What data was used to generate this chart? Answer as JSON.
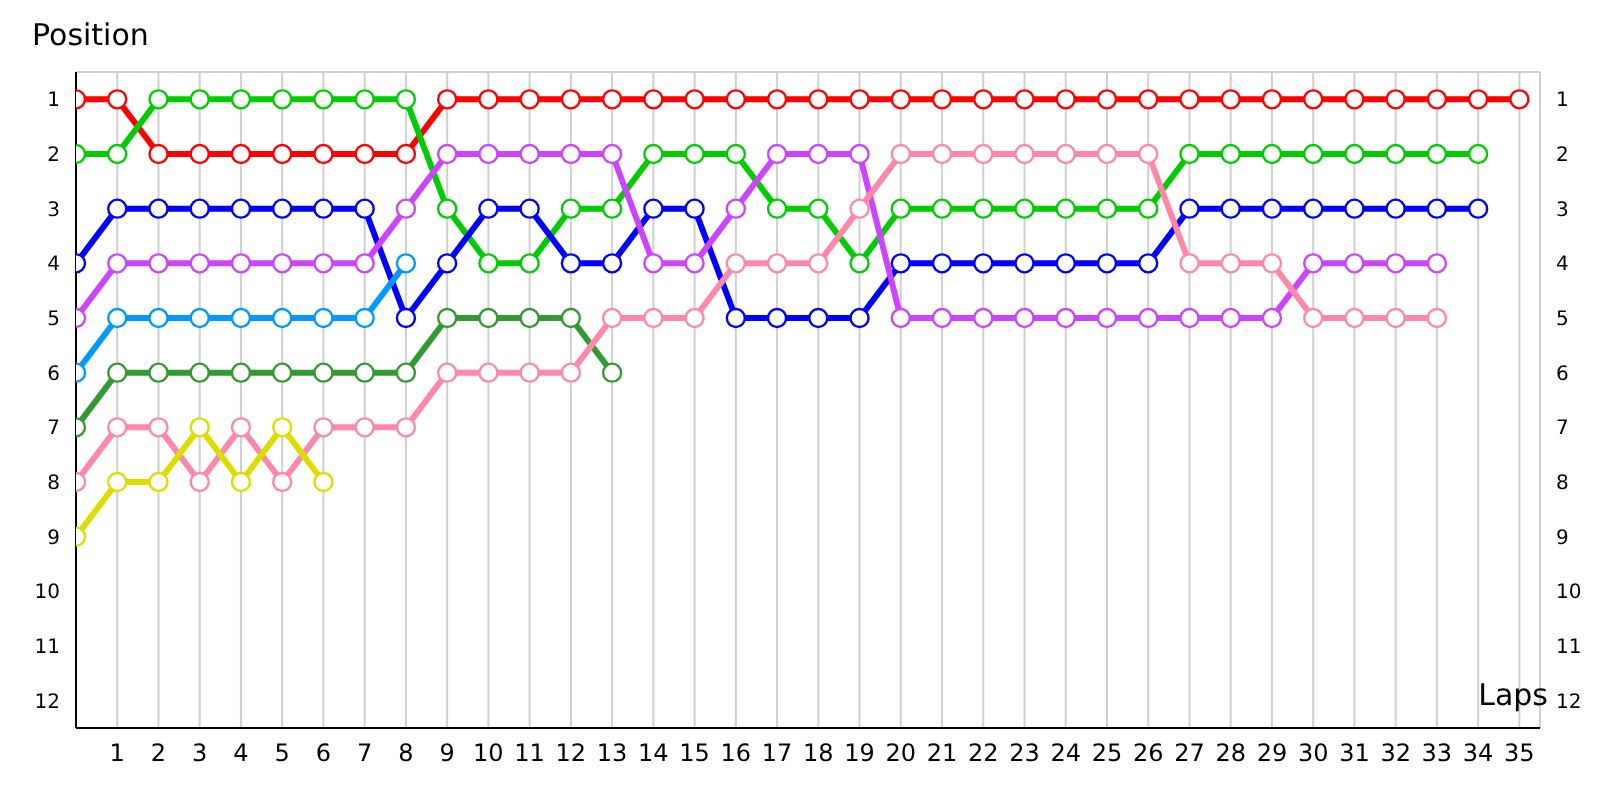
{
  "chart_data": {
    "type": "line",
    "xlabel": "Laps",
    "ylabel": "Position",
    "x": [
      0,
      1,
      2,
      3,
      4,
      5,
      6,
      7,
      8,
      9,
      10,
      11,
      12,
      13,
      14,
      15,
      16,
      17,
      18,
      19,
      20,
      21,
      22,
      23,
      24,
      25,
      26,
      27,
      28,
      29,
      30,
      31,
      32,
      33,
      34,
      35
    ],
    "xlim": [
      0,
      35.5
    ],
    "xticks": [
      1,
      2,
      3,
      4,
      5,
      6,
      7,
      8,
      9,
      10,
      11,
      12,
      13,
      14,
      15,
      16,
      17,
      18,
      19,
      20,
      21,
      22,
      23,
      24,
      25,
      26,
      27,
      28,
      29,
      30,
      31,
      32,
      33,
      34,
      35
    ],
    "ylim": [
      12.5,
      0.5
    ],
    "yticks": [
      1,
      2,
      3,
      4,
      5,
      6,
      7,
      8,
      9,
      10,
      11,
      12
    ],
    "y2lim": [
      12.5,
      0.5
    ],
    "y2ticks": [
      1,
      2,
      3,
      4,
      5,
      6,
      7,
      8,
      9,
      10,
      11,
      12
    ],
    "grid": true,
    "marker": "circle",
    "line_style": "solid",
    "series": [
      {
        "color": "#ff0000",
        "values": [
          1,
          1,
          2,
          2,
          2,
          2,
          2,
          2,
          2,
          1,
          1,
          1,
          1,
          1,
          1,
          1,
          1,
          1,
          1,
          1,
          1,
          1,
          1,
          1,
          1,
          1,
          1,
          1,
          1,
          1,
          1,
          1,
          1,
          1,
          1,
          1
        ]
      },
      {
        "color": "#00cc00",
        "values": [
          2,
          2,
          1,
          1,
          1,
          1,
          1,
          1,
          1,
          3,
          4,
          4,
          3,
          3,
          2,
          2,
          2,
          3,
          3,
          4,
          3,
          3,
          3,
          3,
          3,
          3,
          3,
          2,
          2,
          2,
          2,
          2,
          2,
          2,
          2,
          null
        ]
      },
      {
        "color": "#0000ff",
        "values": [
          4,
          3,
          3,
          3,
          3,
          3,
          3,
          3,
          5,
          4,
          3,
          3,
          4,
          4,
          3,
          3,
          5,
          5,
          5,
          5,
          4,
          4,
          4,
          4,
          4,
          4,
          4,
          3,
          3,
          3,
          3,
          3,
          3,
          3,
          3,
          null
        ]
      },
      {
        "color": "#cc44ff",
        "values": [
          5,
          4,
          4,
          4,
          4,
          4,
          4,
          4,
          3,
          2,
          2,
          2,
          2,
          2,
          4,
          4,
          3,
          2,
          2,
          2,
          5,
          5,
          5,
          5,
          5,
          5,
          5,
          5,
          5,
          5,
          4,
          4,
          4,
          4,
          null,
          null
        ]
      },
      {
        "color": "#0099ff",
        "values": [
          6,
          5,
          5,
          5,
          5,
          5,
          5,
          5,
          4,
          null,
          null,
          null,
          null,
          null,
          null,
          null,
          null,
          null,
          null,
          null,
          null,
          null,
          null,
          null,
          null,
          null,
          null,
          null,
          null,
          null,
          null,
          null,
          null,
          null,
          null,
          null
        ]
      },
      {
        "color": "#339933",
        "values": [
          7,
          6,
          6,
          6,
          6,
          6,
          6,
          6,
          6,
          5,
          5,
          5,
          5,
          6,
          null,
          null,
          null,
          null,
          null,
          null,
          null,
          null,
          null,
          null,
          null,
          null,
          null,
          null,
          null,
          null,
          null,
          null,
          null,
          null,
          null,
          null
        ]
      },
      {
        "color": "#ff88aa",
        "values": [
          8,
          7,
          7,
          8,
          7,
          8,
          7,
          7,
          7,
          6,
          6,
          6,
          6,
          5,
          5,
          5,
          4,
          4,
          4,
          3,
          2,
          2,
          2,
          2,
          2,
          2,
          2,
          4,
          4,
          4,
          5,
          5,
          5,
          5,
          null,
          null
        ]
      },
      {
        "color": "#dddd00",
        "values": [
          9,
          8,
          8,
          7,
          8,
          7,
          8,
          null,
          null,
          null,
          null,
          null,
          null,
          null,
          null,
          null,
          null,
          null,
          null,
          null,
          null,
          null,
          null,
          null,
          null,
          null,
          null,
          null,
          null,
          null,
          null,
          null,
          null,
          null,
          null,
          null
        ]
      }
    ]
  }
}
